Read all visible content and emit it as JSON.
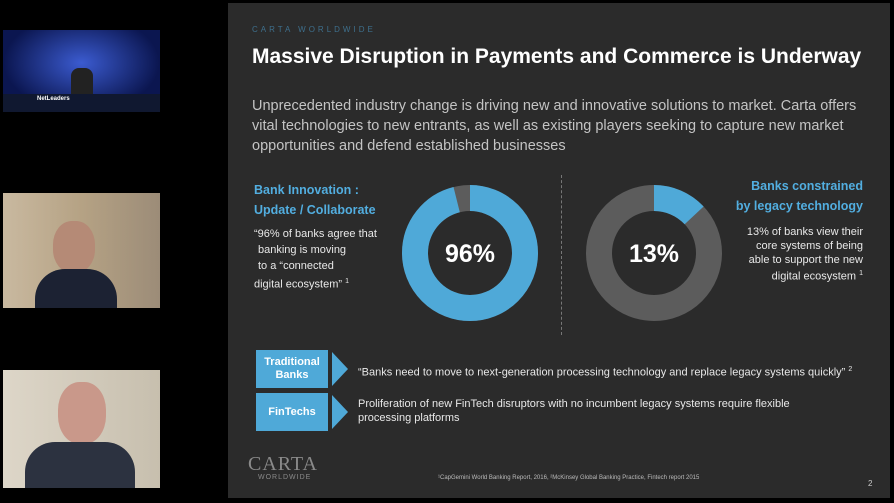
{
  "tiles": {
    "caption": "NetLeaders"
  },
  "slide": {
    "brand": "CARTA WORLDWIDE",
    "title": "Massive Disruption in Payments and Commerce is Underway",
    "intro": "Unprecedented industry change is driving new and innovative solutions to market. Carta offers vital technologies to new entrants, as well as existing players seeking to capture new market opportunities and defend established businesses",
    "left": {
      "heading": [
        "Bank Innovation :",
        "Update / Collaborate"
      ],
      "quote": [
        "“96% of banks agree that",
        "banking is moving",
        "to a “connected",
        "digital ecosystem”"
      ],
      "note": "1"
    },
    "right": {
      "heading": [
        "Banks constrained",
        "by legacy technology"
      ],
      "quote": [
        "13% of banks view their",
        "core systems of being",
        "able to support the new",
        "digital ecosystem"
      ],
      "note": "1"
    },
    "rows": [
      {
        "label": "Traditional Banks",
        "text": "“Banks need to move to next-generation processing technology and replace legacy systems quickly”",
        "note": "2"
      },
      {
        "label": "FinTechs",
        "text": "Proliferation of new FinTech disruptors with no incumbent legacy systems require flexible processing platforms"
      }
    ],
    "logo": [
      "CARTA",
      "WORLDWIDE"
    ],
    "footnote": "¹CapGemini World Banking Report, 2016, ²McKinsey Global Banking Practice, Fintech report 2015",
    "page": "2"
  },
  "chart_data": [
    {
      "type": "donut",
      "values": [
        96
      ],
      "value_labels": [
        "96%"
      ],
      "color": "#4fa9d8",
      "rest_color": "#5c5c5c"
    },
    {
      "type": "donut",
      "values": [
        13
      ],
      "value_labels": [
        "13%"
      ],
      "color": "#4fa9d8",
      "rest_color": "#5c5c5c"
    }
  ]
}
